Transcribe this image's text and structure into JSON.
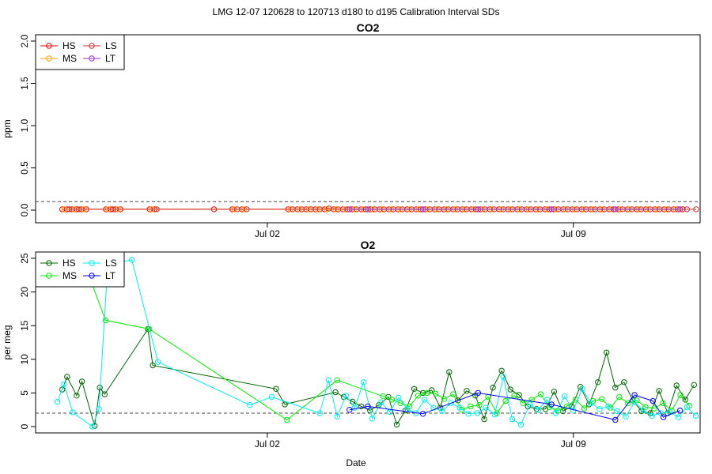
{
  "figure": {
    "main_title": "LMG   12-07    120628 to 120713    d180 to d195   Calibration Interval SDs",
    "xlabel": "Date"
  },
  "chart_data": [
    {
      "type": "scatter",
      "title": "CO2",
      "xlabel": "",
      "ylabel": "ppm",
      "xlim": [
        -0.3,
        14.9
      ],
      "ylim": [
        0,
        2.0
      ],
      "yticks": [
        0.0,
        0.5,
        1.0,
        1.5,
        2.0
      ],
      "ytick_labels": [
        "0.0",
        "0.5",
        "1.0",
        "1.5",
        "2.0"
      ],
      "xticks": [
        {
          "x": 5,
          "label": "Jul 02"
        },
        {
          "x": 12,
          "label": "Jul 09"
        }
      ],
      "hline": 0.1,
      "grid": false,
      "legend": {
        "position": "top-left",
        "entries": [
          "HS",
          "MS",
          "LS",
          "LT"
        ],
        "colors": [
          "#ff0000",
          "#ffa500",
          "#cd3333",
          "#9932cc"
        ]
      },
      "series": [
        {
          "name": "HS",
          "color": "#ff0000",
          "x": [
            0.31,
            0.42,
            0.53,
            0.64,
            0.75,
            0.86,
            1.31,
            1.42,
            1.53,
            1.64,
            2.31,
            2.42,
            3.78,
            4.2,
            4.42,
            5.48,
            5.69,
            5.89,
            6.1,
            6.31,
            6.52,
            6.73,
            6.94,
            7.15,
            7.36,
            7.57,
            7.78,
            7.99,
            8.2,
            8.41,
            8.62,
            8.83,
            9.04,
            9.25,
            9.46,
            9.67,
            9.88,
            10.09,
            10.3,
            10.51,
            10.72,
            10.93,
            11.14,
            11.35,
            11.56,
            11.77,
            11.98,
            12.19,
            12.4,
            12.61,
            12.82,
            13.03,
            13.24,
            13.45,
            13.66,
            13.87,
            14.08,
            14.29,
            14.5
          ],
          "y": [
            0.01,
            0.01,
            0.01,
            0.01,
            0.01,
            0.01,
            0.01,
            0.01,
            0.01,
            0.01,
            0.01,
            0.01,
            0.01,
            0.01,
            0.01,
            0.01,
            0.01,
            0.01,
            0.01,
            0.01,
            0.01,
            0.01,
            0.01,
            0.01,
            0.01,
            0.01,
            0.01,
            0.01,
            0.01,
            0.01,
            0.01,
            0.01,
            0.01,
            0.01,
            0.01,
            0.01,
            0.01,
            0.01,
            0.01,
            0.01,
            0.01,
            0.01,
            0.01,
            0.01,
            0.01,
            0.01,
            0.01,
            0.01,
            0.01,
            0.01,
            0.01,
            0.01,
            0.01,
            0.01,
            0.01,
            0.01,
            0.01,
            0.01,
            0.01
          ]
        },
        {
          "name": "MS",
          "color": "#ffa500",
          "x": [
            0.36,
            0.58,
            0.8,
            1.36,
            1.58,
            2.36,
            4.25,
            4.47,
            5.53,
            5.74,
            5.95,
            6.15,
            6.36,
            6.57,
            6.78,
            6.99,
            7.2,
            7.41,
            7.62,
            7.83,
            8.04,
            8.25,
            8.46,
            8.67,
            8.88,
            9.09,
            9.3,
            9.51,
            9.72,
            9.93,
            10.14,
            10.35,
            10.56,
            10.77,
            10.98,
            11.19,
            11.4,
            11.61,
            11.82,
            12.03,
            12.24,
            12.45,
            12.66,
            12.87,
            13.08,
            13.29,
            13.5,
            13.71,
            13.92,
            14.13,
            14.34
          ],
          "y": [
            0.01,
            0.01,
            0.01,
            0.01,
            0.01,
            0.01,
            0.01,
            0.01,
            0.01,
            0.01,
            0.01,
            0.01,
            0.01,
            0.01,
            0.01,
            0.01,
            0.01,
            0.01,
            0.01,
            0.01,
            0.01,
            0.01,
            0.01,
            0.01,
            0.01,
            0.01,
            0.01,
            0.01,
            0.01,
            0.01,
            0.01,
            0.01,
            0.01,
            0.01,
            0.01,
            0.01,
            0.01,
            0.01,
            0.01,
            0.01,
            0.01,
            0.01,
            0.01,
            0.01,
            0.01,
            0.01,
            0.01,
            0.01,
            0.01,
            0.01,
            0.01
          ]
        },
        {
          "name": "LS",
          "color": "#cd3333",
          "x": [
            0.47,
            0.69,
            1.47,
            2.47,
            4.31,
            4.53,
            5.58,
            5.79,
            6.0,
            6.2,
            6.41,
            6.62,
            6.83,
            7.04,
            7.25,
            7.46,
            7.67,
            7.88,
            8.09,
            8.3,
            8.51,
            8.72,
            8.93,
            9.14,
            9.35,
            9.56,
            9.77,
            9.98,
            10.19,
            10.4,
            10.61,
            10.82,
            11.03,
            11.24,
            11.45,
            11.66,
            11.87,
            12.08,
            12.29,
            12.5,
            12.71,
            12.92,
            13.13,
            13.34,
            13.55,
            13.76,
            13.97,
            14.18,
            14.39,
            14.6,
            14.81
          ],
          "y": [
            0.01,
            0.01,
            0.01,
            0.01,
            0.01,
            0.01,
            0.01,
            0.01,
            0.01,
            0.01,
            0.02,
            0.01,
            0.01,
            0.01,
            0.01,
            0.01,
            0.01,
            0.01,
            0.01,
            0.01,
            0.01,
            0.01,
            0.01,
            0.01,
            0.01,
            0.01,
            0.01,
            0.01,
            0.01,
            0.01,
            0.01,
            0.01,
            0.01,
            0.01,
            0.01,
            0.01,
            0.01,
            0.01,
            0.01,
            0.01,
            0.01,
            0.01,
            0.01,
            0.01,
            0.01,
            0.01,
            0.01,
            0.01,
            0.01,
            0.01,
            0.01
          ]
        },
        {
          "name": "LT",
          "color": "#9932cc",
          "x": [
            6.88,
            7.3,
            8.56,
            9.82,
            11.5,
            12.96,
            14.44
          ],
          "y": [
            0.01,
            0.01,
            0.01,
            0.01,
            0.01,
            0.01,
            0.01
          ]
        }
      ]
    },
    {
      "type": "line",
      "title": "O2",
      "xlabel": "Date",
      "ylabel": "per meg",
      "xlim": [
        -0.3,
        14.9
      ],
      "ylim": [
        0,
        25
      ],
      "yticks": [
        0,
        5,
        10,
        15,
        20,
        25
      ],
      "ytick_labels": [
        "0",
        "5",
        "10",
        "15",
        "20",
        "25"
      ],
      "xticks": [
        {
          "x": 5,
          "label": "Jul 02"
        },
        {
          "x": 12,
          "label": "Jul 09"
        }
      ],
      "hline": 2,
      "grid": false,
      "legend": {
        "position": "top-left",
        "entries": [
          "HS",
          "MS",
          "LS",
          "LT"
        ],
        "colors": [
          "#006400",
          "#00ee00",
          "#00eeee",
          "#0000ff"
        ]
      },
      "series": [
        {
          "name": "HS",
          "color": "#006400",
          "x": [
            0.31,
            0.42,
            0.64,
            0.76,
            1.05,
            1.17,
            1.28,
            2.27,
            2.38,
            5.2,
            5.4,
            6.56,
            6.75,
            6.95,
            7.15,
            7.35,
            7.55,
            7.77,
            7.96,
            8.16,
            8.36,
            8.56,
            8.76,
            8.96,
            9.16,
            9.36,
            9.56,
            9.76,
            9.96,
            10.16,
            10.36,
            10.56,
            10.76,
            10.96,
            11.16,
            11.36,
            11.56,
            11.76,
            11.96,
            12.16,
            12.36,
            12.56,
            12.76,
            12.96,
            13.16,
            13.36,
            13.56,
            13.76,
            13.96,
            14.16,
            14.36,
            14.56,
            14.76
          ],
          "y": [
            5.5,
            7.4,
            4.6,
            6.7,
            0.1,
            5.8,
            4.8,
            14.5,
            9.1,
            5.6,
            3.3,
            5.1,
            4.4,
            3.7,
            3.0,
            2.4,
            3.2,
            4.4,
            0.3,
            2.4,
            5.6,
            5.0,
            5.4,
            2.8,
            8.1,
            3.9,
            5.3,
            4.6,
            1.1,
            5.8,
            8.3,
            5.5,
            4.7,
            3.0,
            2.6,
            2.6,
            5.2,
            2.3,
            3.0,
            5.9,
            3.3,
            6.6,
            11.0,
            5.8,
            6.6,
            3.9,
            2.3,
            2.0,
            5.3,
            2.0,
            6.1,
            4.0,
            6.2
          ]
        },
        {
          "name": "MS",
          "color": "#00ee00",
          "x": [
            0.8,
            1.3,
            2.3,
            5.45,
            6.6,
            7.65,
            7.85,
            8.05,
            8.25,
            8.45,
            8.65,
            8.85,
            9.05,
            9.25,
            9.45,
            9.65,
            9.85,
            10.05,
            10.25,
            10.45,
            10.65,
            10.85,
            11.05,
            11.25,
            11.45,
            11.65,
            11.85,
            12.05,
            12.25,
            12.45,
            12.65,
            12.85,
            13.05,
            13.25,
            13.45,
            13.65,
            13.85,
            14.05,
            14.25,
            14.45,
            14.65
          ],
          "y": [
            24.5,
            15.8,
            14.5,
            1.0,
            6.9,
            4.5,
            4.0,
            3.5,
            3.0,
            4.6,
            5.0,
            4.9,
            4.1,
            4.8,
            2.5,
            3.0,
            3.2,
            4.4,
            2.0,
            3.8,
            4.6,
            3.5,
            4.0,
            4.8,
            2.9,
            2.4,
            3.0,
            4.0,
            2.7,
            3.8,
            4.1,
            2.8,
            4.4,
            3.5,
            3.9,
            2.9,
            2.7,
            3.5,
            2.4,
            4.7,
            3.1
          ]
        },
        {
          "name": "LS",
          "color": "#00eeee",
          "x": [
            0.2,
            0.35,
            0.55,
            1.0,
            1.15,
            1.35,
            1.9,
            2.5,
            4.6,
            5.1,
            6.2,
            6.4,
            6.6,
            6.8,
            7.0,
            7.2,
            7.4,
            7.6,
            7.8,
            8.0,
            8.2,
            8.4,
            8.6,
            8.8,
            9.0,
            9.2,
            9.4,
            9.6,
            9.8,
            10.0,
            10.2,
            10.4,
            10.6,
            10.8,
            11.0,
            11.2,
            11.4,
            11.6,
            11.8,
            12.0,
            12.2,
            12.4,
            12.6,
            12.8,
            13.0,
            13.2,
            13.4,
            13.6,
            13.8,
            14.0,
            14.2,
            14.4,
            14.6,
            14.8
          ],
          "y": [
            3.7,
            6.3,
            2.1,
            0.0,
            2.6,
            24.0,
            24.8,
            9.6,
            3.2,
            4.4,
            2.0,
            6.9,
            1.5,
            4.6,
            2.8,
            6.6,
            1.2,
            3.6,
            2.2,
            4.3,
            2.6,
            2.0,
            4.0,
            2.8,
            2.3,
            3.5,
            2.8,
            1.9,
            2.0,
            2.8,
            1.8,
            7.4,
            1.1,
            0.3,
            3.3,
            2.5,
            4.0,
            2.0,
            4.5,
            2.4,
            5.6,
            3.5,
            2.6,
            3.0,
            2.3,
            1.5,
            3.6,
            2.4,
            1.6,
            2.0,
            2.2,
            1.4,
            2.9,
            1.6
          ]
        },
        {
          "name": "LT",
          "color": "#0000ff",
          "x": [
            6.88,
            7.3,
            8.56,
            9.82,
            11.5,
            12.96,
            13.4,
            13.82,
            14.06,
            14.44
          ],
          "y": [
            2.5,
            3.0,
            1.9,
            5.0,
            3.3,
            1.0,
            4.7,
            3.8,
            1.4,
            2.4
          ]
        }
      ]
    }
  ]
}
